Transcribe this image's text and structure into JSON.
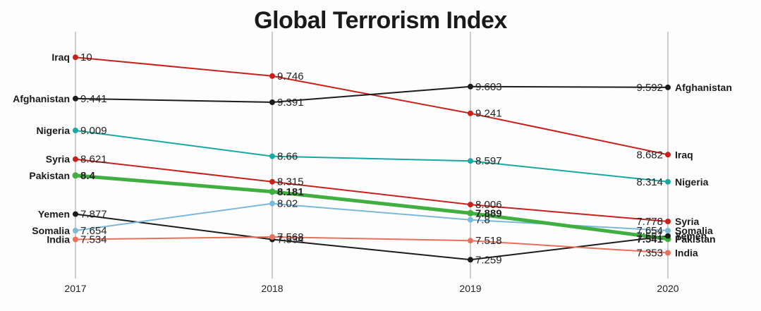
{
  "chart_data": {
    "type": "line",
    "title": "Global Terrorism Index",
    "x": [
      "2017",
      "2018",
      "2019",
      "2020"
    ],
    "ylim": [
      7.1,
      10.25
    ],
    "grid": "vertical lines at each year",
    "series": [
      {
        "name": "Iraq",
        "color": "#c8201b",
        "values": [
          10,
          9.746,
          9.241,
          8.682
        ]
      },
      {
        "name": "Afghanistan",
        "color": "#1c1c1c",
        "values": [
          9.441,
          9.391,
          9.603,
          9.592
        ]
      },
      {
        "name": "Nigeria",
        "color": "#18a8a4",
        "values": [
          9.009,
          8.66,
          8.597,
          8.314
        ]
      },
      {
        "name": "Syria",
        "color": "#c8201b",
        "values": [
          8.621,
          8.315,
          8.006,
          7.778
        ]
      },
      {
        "name": "Pakistan",
        "color": "#3fb03f",
        "values": [
          8.4,
          8.181,
          7.889,
          7.541
        ],
        "bold": true
      },
      {
        "name": "Yemen",
        "color": "#1c1c1c",
        "values": [
          7.877,
          7.534,
          7.259,
          7.581
        ]
      },
      {
        "name": "Somalia",
        "color": "#7ab8dc",
        "values": [
          7.654,
          8.02,
          7.8,
          7.654
        ]
      },
      {
        "name": "India",
        "color": "#e8705c",
        "values": [
          7.534,
          7.568,
          7.518,
          7.353
        ]
      }
    ],
    "value_labels": [
      [
        "10",
        "9.746",
        "9.241",
        "8.682"
      ],
      [
        "9.441",
        "9.391",
        "9.603",
        "9.592"
      ],
      [
        "9.009",
        "8.66",
        "8.597",
        "8.314"
      ],
      [
        "8.621",
        "8.315",
        "8.006",
        "7.778"
      ],
      [
        "8.4",
        "8.181",
        "7.889",
        "7.541"
      ],
      [
        "7.877",
        "7.534",
        "7.259",
        "7.581"
      ],
      [
        "7.654",
        "8.02",
        "7.8",
        "7.654"
      ],
      [
        "7.534",
        "7.568",
        "7.518",
        "7.353"
      ]
    ]
  }
}
